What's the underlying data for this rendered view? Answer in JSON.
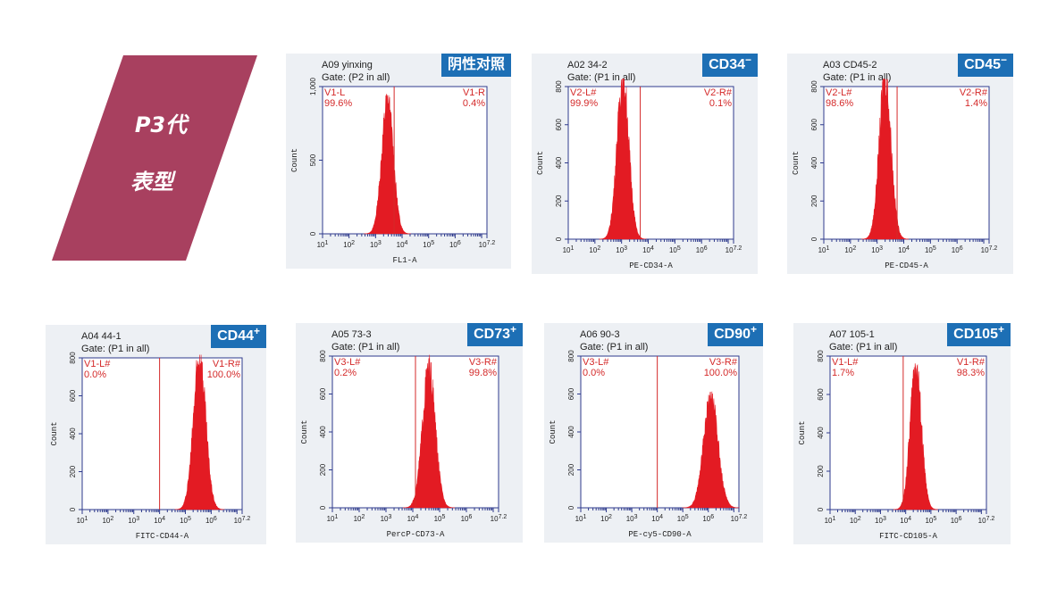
{
  "banner": {
    "line1": "P3代",
    "line2": "表型",
    "color": "#a8405f"
  },
  "colors": {
    "histogram": "#e31b23",
    "marker": "#d42a2a",
    "axis": "#2e3a8c",
    "text": "#222222",
    "badge": "#1d6fb5",
    "panel_bg": "#edf0f4"
  },
  "chart_data": [
    {
      "type": "area",
      "sample": "A09 yinxing",
      "gate": "Gate: (P2 in all)",
      "badge": "阴性对照",
      "badge_sup": "",
      "xlabel": "FL1-A",
      "ylabel": "Count",
      "x_scale": "log",
      "x_ticks": [
        "10^1",
        "10^2",
        "10^3",
        "10^4",
        "10^5",
        "10^6",
        "10^7.2"
      ],
      "ylim": [
        0,
        1000
      ],
      "y_ticks": [
        "0",
        "500",
        "1,000"
      ],
      "marker_x": 3.7,
      "peak_x": 3.45,
      "peak_y": 900,
      "peak_width": 0.22,
      "left_gate": "V1-L",
      "left_pct": "99.6%",
      "right_gate": "V1-R",
      "right_pct": "0.4%"
    },
    {
      "type": "area",
      "sample": "A02 34-2",
      "gate": "Gate: (P1 in all)",
      "badge": "CD34",
      "badge_sup": "−",
      "xlabel": "PE-CD34-A",
      "ylabel": "Count",
      "x_scale": "log",
      "x_ticks": [
        "10^1",
        "10^2",
        "10^3",
        "10^4",
        "10^5",
        "10^6",
        "10^7.2"
      ],
      "ylim": [
        0,
        800
      ],
      "y_ticks": [
        "0",
        "200",
        "400",
        "600",
        "800"
      ],
      "marker_x": 3.7,
      "peak_x": 3.05,
      "peak_y": 850,
      "peak_width": 0.22,
      "left_gate": "V2-L#",
      "left_pct": "99.9%",
      "right_gate": "V2-R#",
      "right_pct": "0.1%"
    },
    {
      "type": "area",
      "sample": "A03 CD45-2",
      "gate": "Gate: (P1 in all)",
      "badge": "CD45",
      "badge_sup": "−",
      "xlabel": "PE-CD45-A",
      "ylabel": "Count",
      "x_scale": "log",
      "x_ticks": [
        "10^1",
        "10^2",
        "10^3",
        "10^4",
        "10^5",
        "10^6",
        "10^7.2"
      ],
      "ylim": [
        0,
        800
      ],
      "y_ticks": [
        "0",
        "200",
        "400",
        "600",
        "800"
      ],
      "marker_x": 3.75,
      "peak_x": 3.3,
      "peak_y": 850,
      "peak_width": 0.22,
      "left_gate": "V2-L#",
      "left_pct": "98.6%",
      "right_gate": "V2-R#",
      "right_pct": "1.4%"
    },
    {
      "type": "area",
      "sample": "A04 44-1",
      "gate": "Gate: (P1 in all)",
      "badge": "CD44",
      "badge_sup": "+",
      "xlabel": "FITC-CD44-A",
      "ylabel": "Count",
      "x_scale": "log",
      "x_ticks": [
        "10^1",
        "10^2",
        "10^3",
        "10^4",
        "10^5",
        "10^6",
        "10^7.2"
      ],
      "ylim": [
        0,
        800
      ],
      "y_ticks": [
        "0",
        "200",
        "400",
        "600",
        "800"
      ],
      "marker_x": 4.0,
      "peak_x": 5.55,
      "peak_y": 800,
      "peak_width": 0.24,
      "left_gate": "V1-L#",
      "left_pct": "0.0%",
      "right_gate": "V1-R#",
      "right_pct": "100.0%"
    },
    {
      "type": "area",
      "sample": "A05 73-3",
      "gate": "Gate: (P1 in all)",
      "badge": "CD73",
      "badge_sup": "+",
      "xlabel": "PercP-CD73-A",
      "ylabel": "Count",
      "x_scale": "log",
      "x_ticks": [
        "10^1",
        "10^2",
        "10^3",
        "10^4",
        "10^5",
        "10^6",
        "10^7.2"
      ],
      "ylim": [
        0,
        800
      ],
      "y_ticks": [
        "0",
        "200",
        "400",
        "600",
        "800"
      ],
      "marker_x": 4.1,
      "peak_x": 4.6,
      "peak_y": 730,
      "peak_width": 0.24,
      "left_gate": "V3-L#",
      "left_pct": "0.2%",
      "right_gate": "V3-R#",
      "right_pct": "99.8%"
    },
    {
      "type": "area",
      "sample": "A06 90-3",
      "gate": "Gate: (P1 in all)",
      "badge": "CD90",
      "badge_sup": "+",
      "xlabel": "PE-cy5-CD90-A",
      "ylabel": "Count",
      "x_scale": "log",
      "x_ticks": [
        "10^1",
        "10^2",
        "10^3",
        "10^4",
        "10^5",
        "10^6",
        "10^7.2"
      ],
      "ylim": [
        0,
        800
      ],
      "y_ticks": [
        "0",
        "200",
        "400",
        "600",
        "800"
      ],
      "marker_x": 4.0,
      "peak_x": 6.1,
      "peak_y": 590,
      "peak_width": 0.28,
      "left_gate": "V3-L#",
      "left_pct": "0.0%",
      "right_gate": "V3-R#",
      "right_pct": "100.0%"
    },
    {
      "type": "area",
      "sample": "A07 105-1",
      "gate": "Gate: (P1 in all)",
      "badge": "CD105",
      "badge_sup": "+",
      "xlabel": "FITC-CD105-A",
      "ylabel": "Count",
      "x_scale": "log",
      "x_ticks": [
        "10^1",
        "10^2",
        "10^3",
        "10^4",
        "10^5",
        "10^6",
        "10^7.2"
      ],
      "ylim": [
        0,
        800
      ],
      "y_ticks": [
        "0",
        "200",
        "400",
        "600",
        "800"
      ],
      "marker_x": 3.9,
      "peak_x": 4.4,
      "peak_y": 760,
      "peak_width": 0.22,
      "left_gate": "V1-L#",
      "left_pct": "1.7%",
      "right_gate": "V1-R#",
      "right_pct": "98.3%"
    }
  ]
}
